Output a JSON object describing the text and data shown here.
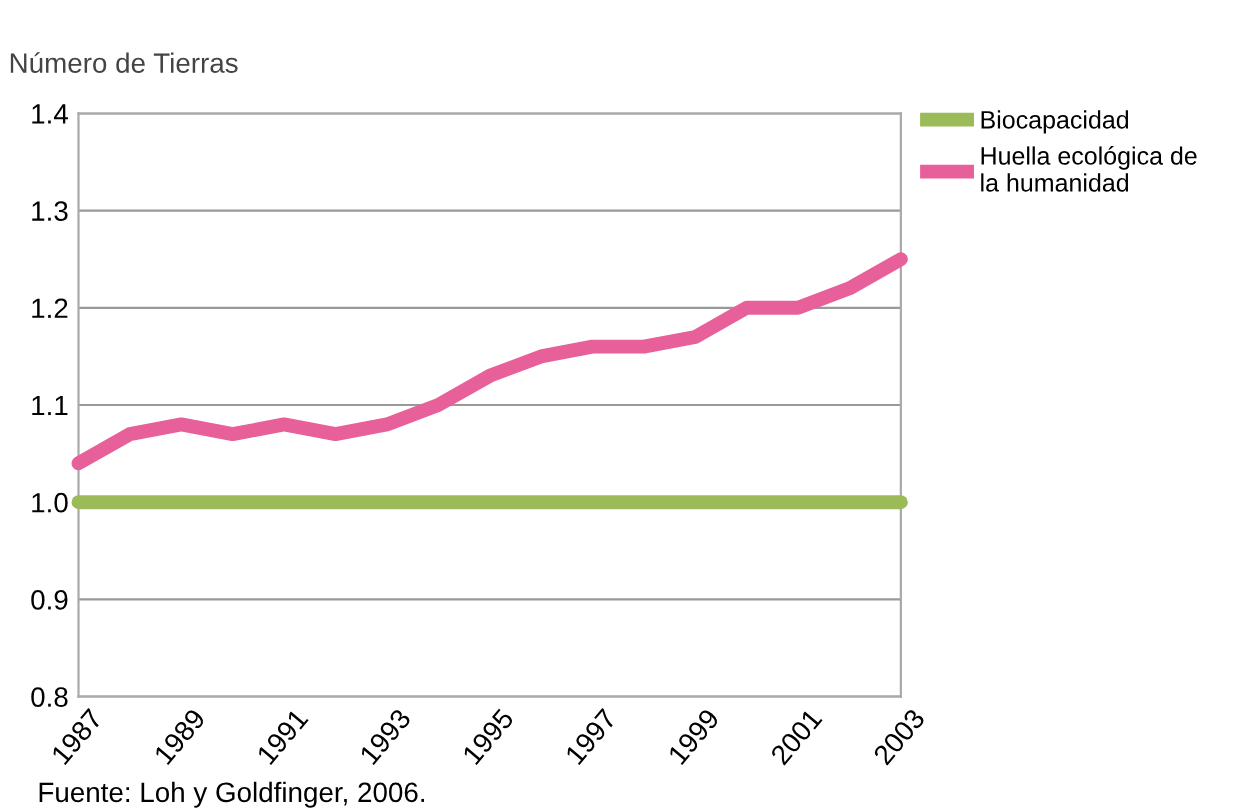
{
  "chart_data": {
    "type": "line",
    "ylabel": "Número de Tierras",
    "x": [
      1987,
      1988,
      1989,
      1990,
      1991,
      1992,
      1993,
      1994,
      1995,
      1996,
      1997,
      1998,
      1999,
      2000,
      2001,
      2002,
      2003
    ],
    "series": [
      {
        "name": "Biocapacidad",
        "color": "#9bbb59",
        "values": [
          1.0,
          1.0,
          1.0,
          1.0,
          1.0,
          1.0,
          1.0,
          1.0,
          1.0,
          1.0,
          1.0,
          1.0,
          1.0,
          1.0,
          1.0,
          1.0,
          1.0
        ]
      },
      {
        "name": "Huella ecológica de la humanidad",
        "color": "#e8609a",
        "values": [
          1.04,
          1.07,
          1.08,
          1.07,
          1.08,
          1.07,
          1.08,
          1.1,
          1.13,
          1.15,
          1.16,
          1.16,
          1.17,
          1.2,
          1.2,
          1.22,
          1.25
        ]
      }
    ],
    "xlim": [
      1987,
      2003
    ],
    "xticks": [
      1987,
      1989,
      1991,
      1993,
      1995,
      1997,
      1999,
      2001,
      2003
    ],
    "ylim": [
      0.8,
      1.4
    ],
    "yticks": [
      {
        "value": 0.8,
        "label": "0.8"
      },
      {
        "value": 0.9,
        "label": "0.9"
      },
      {
        "value": 1.0,
        "label": "1.0"
      },
      {
        "value": 1.1,
        "label": "1.1"
      },
      {
        "value": 1.2,
        "label": "1.2"
      },
      {
        "value": 1.3,
        "label": "1.3"
      },
      {
        "value": 1.4,
        "label": "1.4"
      }
    ],
    "grid": "y",
    "legend": "top right",
    "marker": "none",
    "line_style": "solid",
    "annotations": [
      "Fuente: Loh y Goldfinger, 2006."
    ]
  }
}
